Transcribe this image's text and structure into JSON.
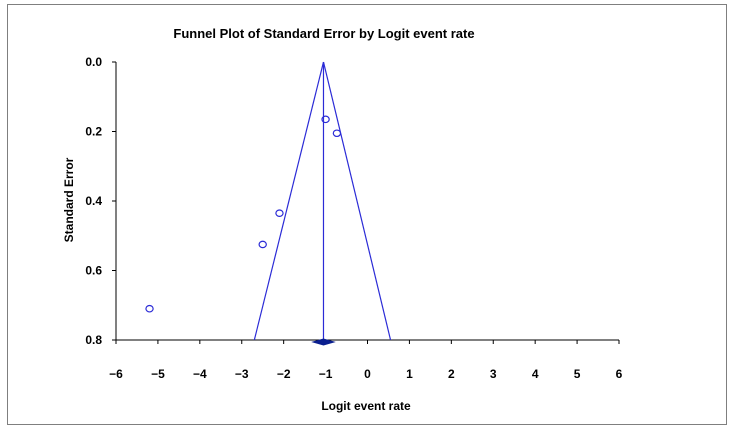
{
  "chart_data": {
    "type": "scatter",
    "title": "Funnel Plot of Standard Error by Logit event rate",
    "xlabel": "Logit event rate",
    "ylabel": "Standard Error",
    "xlim": [
      -6,
      6
    ],
    "ylim": [
      0.0,
      0.8
    ],
    "y_inverted": true,
    "x_ticks": [
      "−6",
      "−5",
      "−4",
      "−3",
      "−2",
      "−1",
      "0",
      "1",
      "2",
      "3",
      "4",
      "5",
      "6"
    ],
    "x_tick_values": [
      -6,
      -5,
      -4,
      -3,
      -2,
      -1,
      0,
      1,
      2,
      3,
      4,
      5,
      6
    ],
    "y_ticks": [
      "0.0",
      "0.2",
      "0.4",
      "0.6",
      "0.8"
    ],
    "y_tick_values": [
      0.0,
      0.2,
      0.4,
      0.6,
      0.8
    ],
    "grid": false,
    "points": [
      {
        "x": -5.2,
        "y": 0.71
      },
      {
        "x": -2.5,
        "y": 0.525
      },
      {
        "x": -2.1,
        "y": 0.435
      },
      {
        "x": -1.0,
        "y": 0.165
      },
      {
        "x": -0.73,
        "y": 0.205
      }
    ],
    "pooled_estimate": -1.05,
    "funnel": {
      "apex": [
        -1.05,
        0.0
      ],
      "left_bottom": [
        -2.7,
        0.8
      ],
      "right_bottom": [
        0.55,
        0.8
      ]
    },
    "summary_diamond": {
      "center": -1.05,
      "lower": -1.3,
      "upper": -0.8
    },
    "color": "#2b2bd6",
    "diamond_color": "#0a1f8f"
  }
}
